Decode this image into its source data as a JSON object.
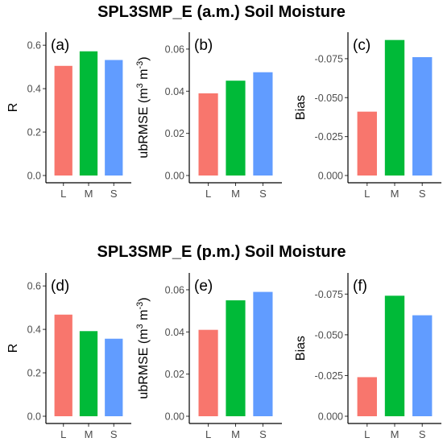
{
  "titles": {
    "top": "SPL3SMP_E (a.m.) Soil Moisture",
    "bottom": "SPL3SMP_E (p.m.) Soil Moisture"
  },
  "colors": {
    "L": "#F8766D",
    "M": "#00BA38",
    "S": "#619CFF"
  },
  "chart_data": [
    {
      "type": "bar",
      "panel": "(a)",
      "categories": [
        "L",
        "M",
        "S"
      ],
      "values": [
        0.505,
        0.572,
        0.532
      ],
      "ylabel": "R",
      "ylim": [
        0,
        0.66
      ],
      "yticks": [
        0.0,
        0.2,
        0.4,
        0.6
      ],
      "yticklabels": [
        "0.0",
        "0.2",
        "0.4",
        "0.6"
      ],
      "reversed": false,
      "grid": false
    },
    {
      "type": "bar",
      "panel": "(b)",
      "categories": [
        "L",
        "M",
        "S"
      ],
      "values": [
        0.039,
        0.045,
        0.049
      ],
      "ylabel": "ubRMSE",
      "ylabel_unit": "m3 m-3",
      "ylim": [
        0,
        0.068
      ],
      "yticks": [
        0.0,
        0.02,
        0.04,
        0.06
      ],
      "yticklabels": [
        "0.00",
        "0.02",
        "0.04",
        "0.06"
      ],
      "reversed": false,
      "grid": false
    },
    {
      "type": "bar",
      "panel": "(c)",
      "categories": [
        "L",
        "M",
        "S"
      ],
      "values": [
        -0.041,
        -0.087,
        -0.076
      ],
      "ylabel": "Bias",
      "ylim": [
        0,
        -0.092
      ],
      "yticks": [
        0.0,
        -0.025,
        -0.05,
        -0.075
      ],
      "yticklabels": [
        "0.000",
        "-0.025",
        "-0.050",
        "-0.075"
      ],
      "reversed": true,
      "grid": false
    },
    {
      "type": "bar",
      "panel": "(d)",
      "categories": [
        "L",
        "M",
        "S"
      ],
      "values": [
        0.468,
        0.392,
        0.357
      ],
      "ylabel": "R",
      "ylim": [
        0,
        0.66
      ],
      "yticks": [
        0.0,
        0.2,
        0.4,
        0.6
      ],
      "yticklabels": [
        "0.0",
        "0.2",
        "0.4",
        "0.6"
      ],
      "reversed": false,
      "grid": false
    },
    {
      "type": "bar",
      "panel": "(e)",
      "categories": [
        "L",
        "M",
        "S"
      ],
      "values": [
        0.041,
        0.055,
        0.059
      ],
      "ylabel": "ubRMSE",
      "ylabel_unit": "m3 m-3",
      "ylim": [
        0,
        0.068
      ],
      "yticks": [
        0.0,
        0.02,
        0.04,
        0.06
      ],
      "yticklabels": [
        "0.00",
        "0.02",
        "0.04",
        "0.06"
      ],
      "reversed": false,
      "grid": false
    },
    {
      "type": "bar",
      "panel": "(f)",
      "categories": [
        "L",
        "M",
        "S"
      ],
      "values": [
        -0.024,
        -0.074,
        -0.062
      ],
      "ylabel": "Bias",
      "ylim": [
        0,
        -0.088
      ],
      "yticks": [
        0.0,
        -0.025,
        -0.05,
        -0.075
      ],
      "yticklabels": [
        "0.000",
        "-0.025",
        "-0.050",
        "-0.075"
      ],
      "reversed": true,
      "grid": false
    }
  ]
}
